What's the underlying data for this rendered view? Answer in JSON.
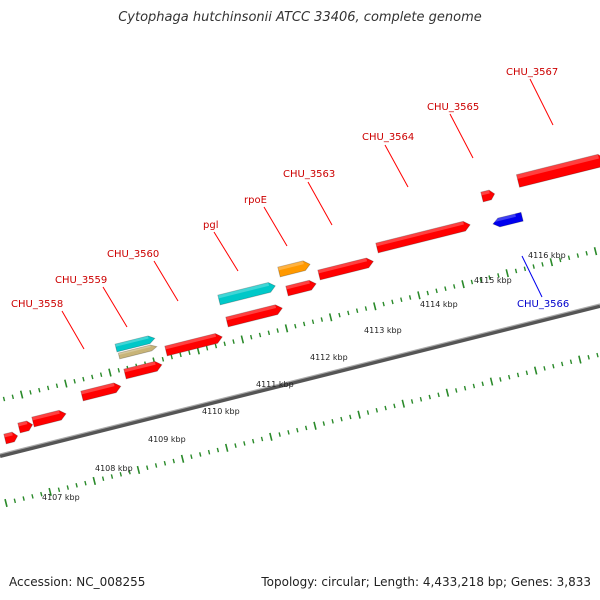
{
  "title": "Cytophaga hutchinsonii ATCC 33406, complete genome",
  "footer": {
    "accession_label": "Accession: NC_008255",
    "summary": "Topology: circular; Length: 4,433,218 bp; Genes: 3,833"
  },
  "colors": {
    "gene_forward": "#ff0000",
    "gene_reverse": "#0000ee",
    "rrna_or_special": "#00c8c8",
    "trna": "#ff8c00",
    "misc": "#c8b478",
    "backbone": "#888888",
    "tick_forward": "#2a8a2a",
    "tick_reverse": "#2a8a2a",
    "label_forward": "#cc0000",
    "label_reverse": "#0000cc"
  },
  "chart_data": {
    "type": "genome_map",
    "scale_unit": "kbp",
    "scale_ticks": [
      "4107 kbp",
      "4108 kbp",
      "4109 kbp",
      "4110 kbp",
      "4111 kbp",
      "4112 kbp",
      "4113 kbp",
      "4114 kbp",
      "4115 kbp",
      "4116 kbp"
    ],
    "scale_tick_values": [
      4107,
      4108,
      4109,
      4110,
      4111,
      4112,
      4113,
      4114,
      4115,
      4116
    ],
    "gene_labels": [
      {
        "name": "CHU_3558",
        "strand": "+"
      },
      {
        "name": "CHU_3559",
        "strand": "+"
      },
      {
        "name": "CHU_3560",
        "strand": "+"
      },
      {
        "name": "pgl",
        "strand": "+"
      },
      {
        "name": "rpoE",
        "strand": "+"
      },
      {
        "name": "CHU_3563",
        "strand": "+"
      },
      {
        "name": "CHU_3564",
        "strand": "+"
      },
      {
        "name": "CHU_3565",
        "strand": "+"
      },
      {
        "name": "CHU_3567",
        "strand": "+"
      },
      {
        "name": "CHU_3566",
        "strand": "-"
      }
    ]
  }
}
